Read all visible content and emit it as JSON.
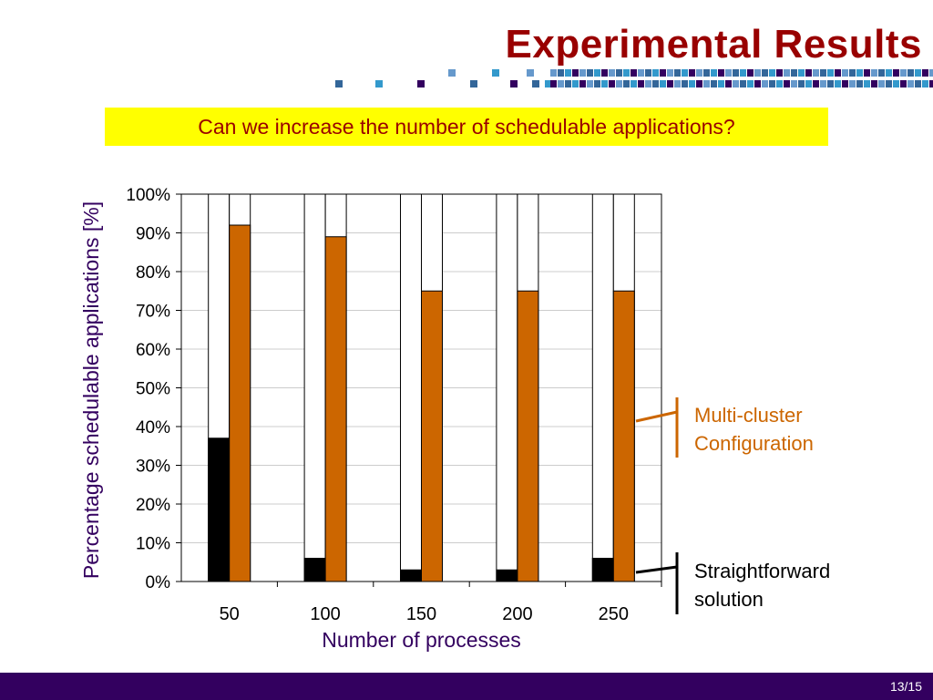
{
  "slide": {
    "title": "Experimental Results",
    "question": "Can we increase the number of schedulable applications?",
    "page_number": "13/15",
    "colors": {
      "title": "#990000",
      "question_bg": "#ffff00",
      "footer": "#33005f",
      "header_squares": [
        "#336699",
        "#3399cc",
        "#33005f",
        "#6699cc"
      ]
    }
  },
  "chart_data": {
    "type": "bar",
    "categories": [
      "50",
      "100",
      "150",
      "200",
      "250"
    ],
    "series": [
      {
        "name": "Straightforward solution",
        "color": "#000000",
        "values": [
          37,
          6,
          3,
          3,
          6
        ]
      },
      {
        "name": "Multi-cluster Configuration",
        "color": "#cc6600",
        "values": [
          92,
          89,
          75,
          75,
          75
        ]
      }
    ],
    "xlabel": "Number of processes",
    "ylabel": "Percentage schedulable applications [%]",
    "ylim": [
      0,
      100
    ],
    "yticks": [
      "0%",
      "10%",
      "20%",
      "30%",
      "40%",
      "50%",
      "60%",
      "70%",
      "80%",
      "90%",
      "100%"
    ],
    "grid": true,
    "axis_label_color": "#33005f",
    "legend": {
      "placement": "right",
      "items": [
        {
          "lines": [
            "Multi-cluster",
            "Configuration"
          ],
          "color": "#cc6600"
        },
        {
          "lines": [
            "Straightforward",
            "solution"
          ],
          "color": "#000000"
        }
      ]
    }
  }
}
